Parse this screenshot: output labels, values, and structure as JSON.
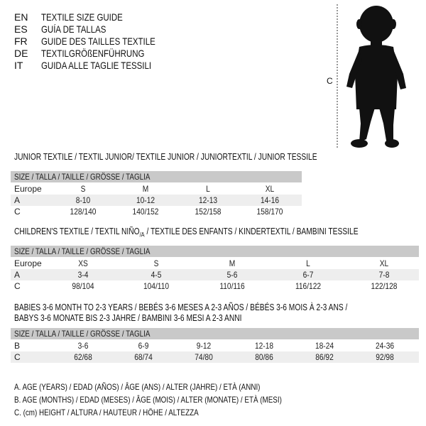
{
  "languages": [
    {
      "code": "EN",
      "text": "TEXTILE SIZE GUIDE"
    },
    {
      "code": "ES",
      "text": "GUÍA DE TALLAS"
    },
    {
      "code": "FR",
      "text": "GUIDE DES TAILLES TEXTILE"
    },
    {
      "code": "DE",
      "text": "TEXTILGRÖßENFÜHRUNG"
    },
    {
      "code": "IT",
      "text": "GUIDA ALLE TAGLIE TESSILI"
    }
  ],
  "figure": {
    "height_label": "C",
    "icon": "baby-silhouette"
  },
  "size_header": "SIZE / TALLA / TAILLE / GRÖSSE / TAGLIA",
  "junior": {
    "title": "JUNIOR TEXTILE / TEXTIL JUNIOR/ TEXTILE JUNIOR / JUNIORTEXTIL / JUNIOR TESSILE",
    "rows": [
      {
        "label": "Europe",
        "values": [
          "S",
          "M",
          "L",
          "XL"
        ]
      },
      {
        "label": "A",
        "values": [
          "8-10",
          "10-12",
          "12-13",
          "14-16"
        ]
      },
      {
        "label": "C",
        "values": [
          "128/140",
          "140/152",
          "152/158",
          "158/170"
        ]
      }
    ]
  },
  "children": {
    "title_pre": "CHILDREN'S TEXTILE / TEXTIL NIÑO",
    "title_sub": "/A",
    "title_post": " / TEXTILE DES ENFANTS / KINDERTEXTIL / BAMBINI TESSILE",
    "rows": [
      {
        "label": "Europe",
        "values": [
          "XS",
          "S",
          "M",
          "L",
          "XL"
        ]
      },
      {
        "label": "A",
        "values": [
          "3-4",
          "4-5",
          "5-6",
          "6-7",
          "7-8"
        ]
      },
      {
        "label": "C",
        "values": [
          "98/104",
          "104/110",
          "110/116",
          "116/122",
          "122/128"
        ]
      }
    ]
  },
  "babies": {
    "title_line1": "BABIES 3-6 MONTH TO 2-3 YEARS / BEBÉS 3-6 MESES A 2-3 AÑOS / BÉBÉS 3-6 MOIS À 2-3 ANS /",
    "title_line2": "BABYS 3-6 MONATE BIS 2-3 JAHRE / BAMBINI 3-6 MESI A 2-3 ANNI",
    "rows": [
      {
        "label": "B",
        "values": [
          "3-6",
          "6-9",
          "9-12",
          "12-18",
          "18-24",
          "24-36"
        ]
      },
      {
        "label": "C",
        "values": [
          "62/68",
          "68/74",
          "74/80",
          "80/86",
          "86/92",
          "92/98"
        ]
      }
    ]
  },
  "legend": [
    "A. AGE (YEARS) / EDAD (AÑOS) / ÂGE (ANS) / ALTER (JAHRE) / ETÀ (ANNI)",
    "B. AGE (MONTHS) / EDAD (MESES) / ÂGE (MOIS) / ALTER (MONATE) / ETÀ (MESI)",
    "C. (cm) HEIGHT / ALTURA / HAUTEUR / HÖHE / ALTEZZA"
  ]
}
